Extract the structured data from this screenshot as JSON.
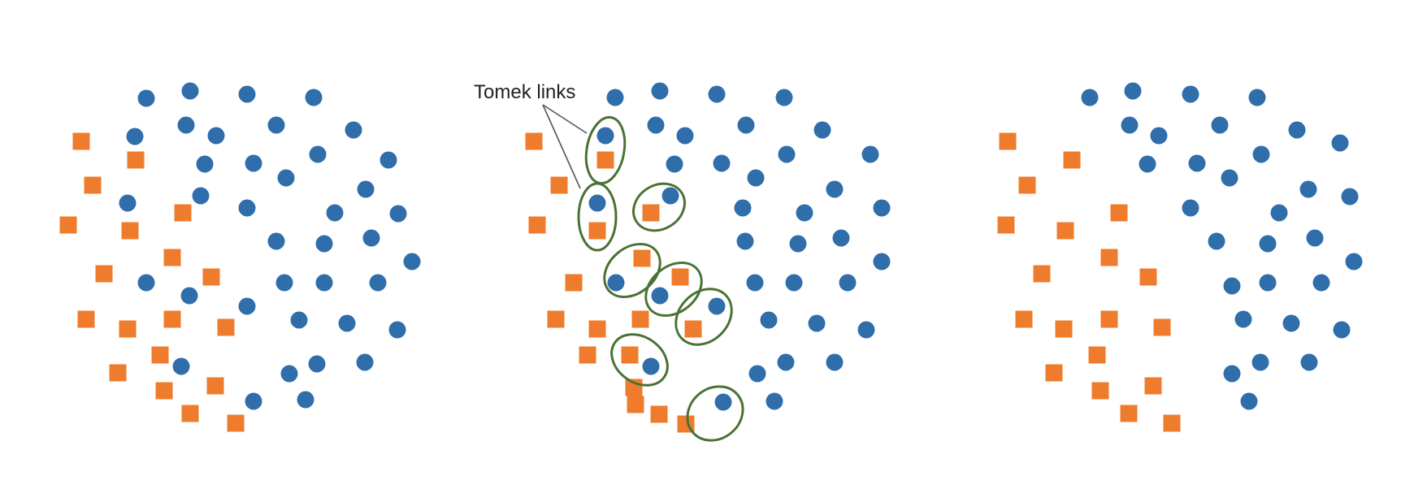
{
  "annotation": {
    "label": "Tomek links"
  },
  "colors": {
    "majority": "#2f6eab",
    "minority": "#ef7c2c",
    "link_outline": "#4a7234",
    "pointer": "#555555",
    "text": "#222222"
  },
  "panels": [
    {
      "id": "original",
      "shows_links": false
    },
    {
      "id": "tomek-links-highlighted",
      "shows_links": true,
      "tomek_link_count": 9
    },
    {
      "id": "after-removal",
      "shows_links": false
    }
  ]
}
